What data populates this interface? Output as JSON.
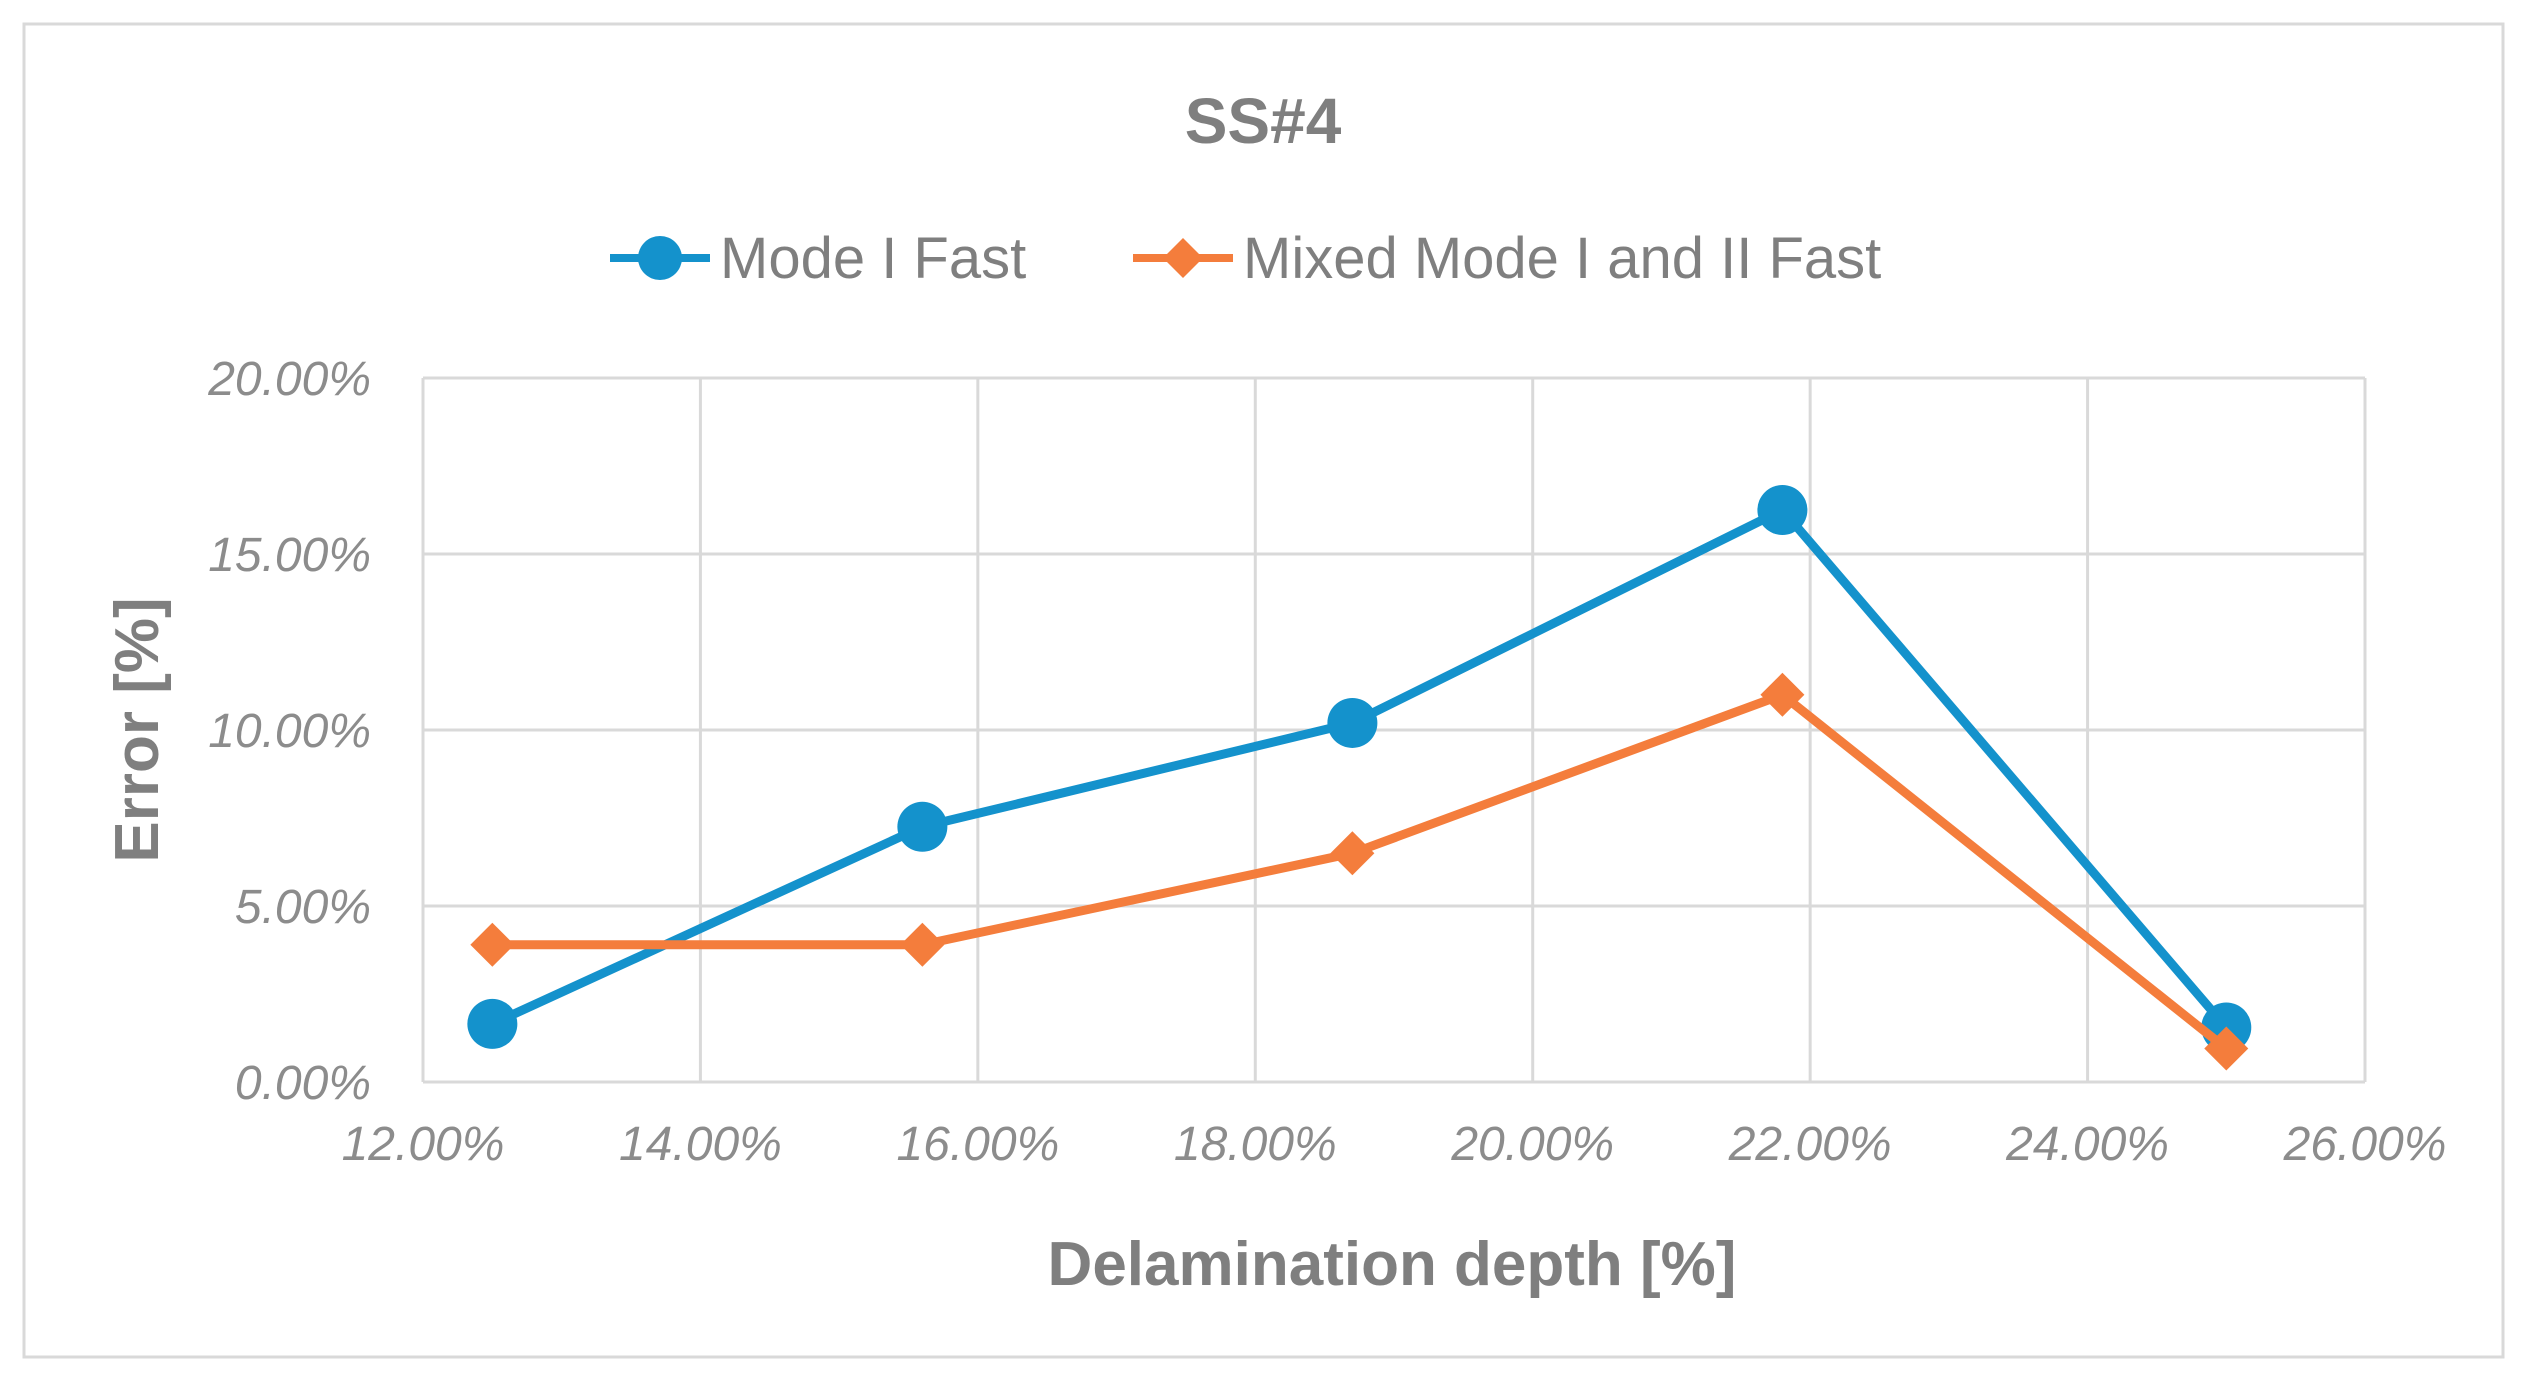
{
  "chart_data": {
    "type": "line",
    "title": "SS#4",
    "xlabel": "Delamination depth [%]",
    "ylabel": "Error [%]",
    "xlim": [
      12,
      26
    ],
    "ylim": [
      0,
      20
    ],
    "x_ticks": [
      "12.00%",
      "14.00%",
      "16.00%",
      "18.00%",
      "20.00%",
      "22.00%",
      "24.00%",
      "26.00%"
    ],
    "y_ticks": [
      "0.00%",
      "5.00%",
      "10.00%",
      "15.00%",
      "20.00%"
    ],
    "grid": true,
    "legend_position": "top-center",
    "series": [
      {
        "name": "Mode I Fast",
        "color": "#1492cc",
        "marker": "circle",
        "x": [
          12.5,
          15.6,
          18.7,
          21.8,
          25.0
        ],
        "y": [
          1.65,
          7.25,
          10.2,
          16.25,
          1.55
        ]
      },
      {
        "name": "Mixed Mode I and II Fast",
        "color": "#f47d3c",
        "marker": "diamond",
        "x": [
          12.5,
          15.6,
          18.7,
          21.8,
          25.0
        ],
        "y": [
          3.9,
          3.9,
          6.5,
          11.0,
          0.95
        ]
      }
    ]
  }
}
